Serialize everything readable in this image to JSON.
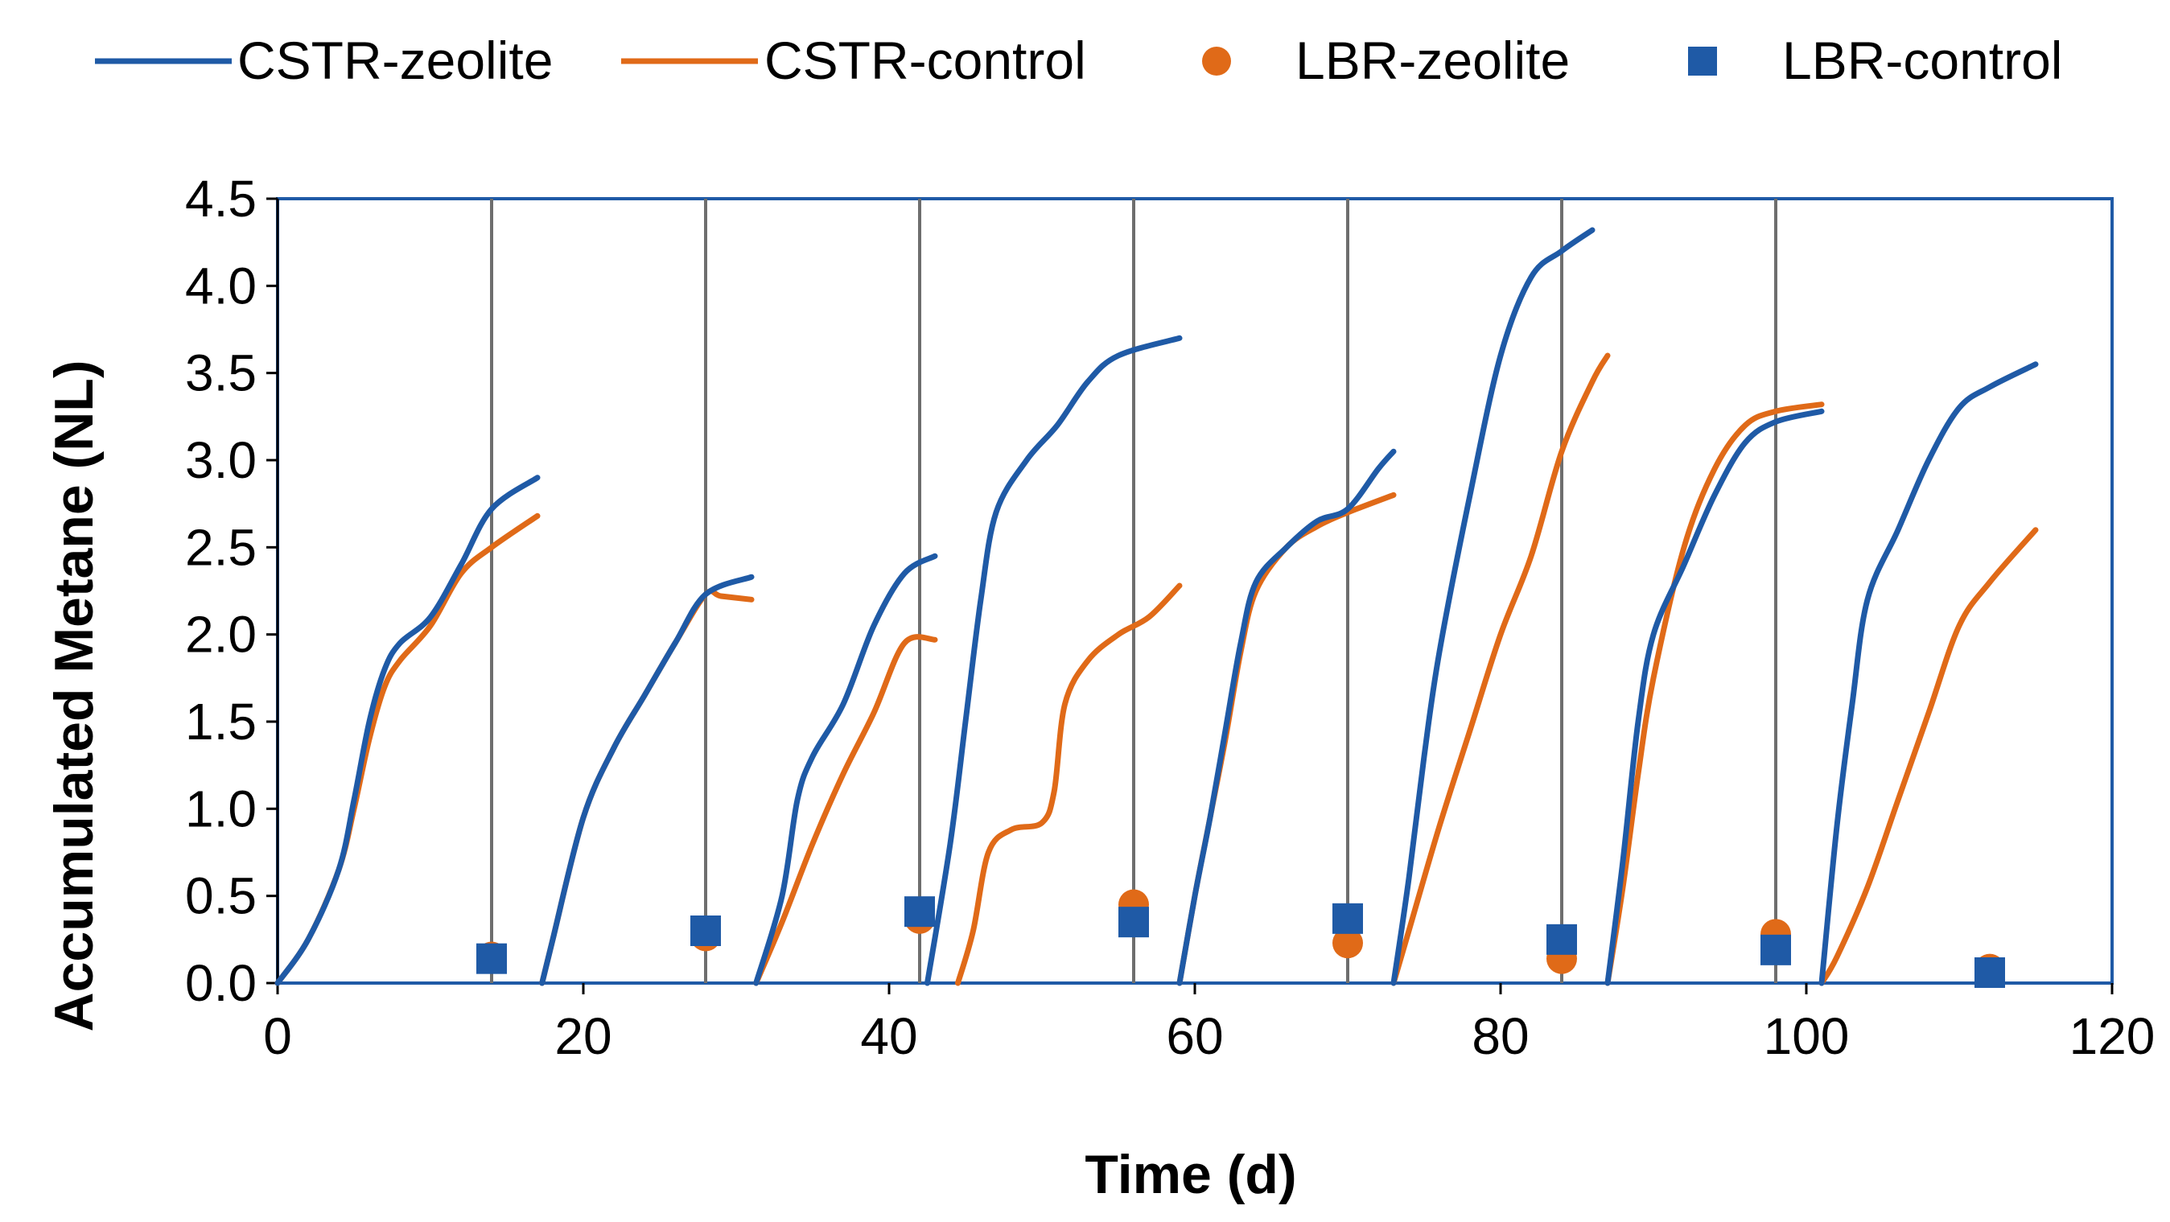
{
  "chart_data": {
    "type": "line",
    "title": "",
    "xlabel": "Time (d)",
    "ylabel": "Accumulated Metane (NL)",
    "xlim": [
      0,
      120
    ],
    "ylim": [
      0,
      4.5
    ],
    "x_ticks": [
      0,
      20,
      40,
      60,
      80,
      100,
      120
    ],
    "x_tick_labels": [
      "0",
      "20",
      "40",
      "60",
      "80",
      "100",
      "120"
    ],
    "y_ticks": [
      0,
      0.5,
      1.0,
      1.5,
      2.0,
      2.5,
      3.0,
      3.5,
      4.0,
      4.5
    ],
    "y_tick_labels": [
      "0.0",
      "0.5",
      "1.0",
      "1.5",
      "2.0",
      "2.5",
      "3.0",
      "3.5",
      "4.0",
      "4.5"
    ],
    "batch_markers_x": [
      14,
      28,
      42,
      56,
      70,
      84,
      98
    ],
    "legend_position": "top",
    "series": [
      {
        "name": "CSTR-zeolite",
        "kind": "line",
        "color": "#1f5aa6",
        "segments": [
          [
            [
              0,
              0
            ],
            [
              2,
              0.25
            ],
            [
              4,
              0.65
            ],
            [
              5,
              1.05
            ],
            [
              6,
              1.5
            ],
            [
              7,
              1.8
            ],
            [
              8,
              1.95
            ],
            [
              10,
              2.1
            ],
            [
              12,
              2.4
            ],
            [
              14,
              2.72
            ],
            [
              17,
              2.9
            ]
          ],
          [
            [
              17.3,
              0
            ],
            [
              18,
              0.25
            ],
            [
              20,
              0.95
            ],
            [
              22,
              1.35
            ],
            [
              24,
              1.65
            ],
            [
              26,
              1.95
            ],
            [
              28,
              2.23
            ],
            [
              31,
              2.33
            ]
          ],
          [
            [
              31.3,
              0
            ],
            [
              33,
              0.5
            ],
            [
              34,
              1.05
            ],
            [
              35,
              1.3
            ],
            [
              37,
              1.6
            ],
            [
              39,
              2.05
            ],
            [
              41,
              2.35
            ],
            [
              43,
              2.45
            ]
          ],
          [
            [
              42.5,
              0
            ],
            [
              44,
              0.8
            ],
            [
              45,
              1.5
            ],
            [
              46,
              2.2
            ],
            [
              47,
              2.7
            ],
            [
              49,
              3.0
            ],
            [
              51,
              3.2
            ],
            [
              53,
              3.45
            ],
            [
              55,
              3.6
            ],
            [
              59,
              3.7
            ]
          ],
          [
            [
              59,
              0
            ],
            [
              60,
              0.5
            ],
            [
              61,
              0.95
            ],
            [
              62,
              1.45
            ],
            [
              63,
              1.95
            ],
            [
              64,
              2.3
            ],
            [
              66,
              2.5
            ],
            [
              68,
              2.65
            ],
            [
              70,
              2.72
            ],
            [
              72,
              2.95
            ],
            [
              73,
              3.05
            ]
          ],
          [
            [
              73,
              0
            ],
            [
              74,
              0.6
            ],
            [
              75,
              1.3
            ],
            [
              76,
              1.9
            ],
            [
              78,
              2.8
            ],
            [
              80,
              3.6
            ],
            [
              82,
              4.05
            ],
            [
              84,
              4.2
            ],
            [
              86,
              4.32
            ]
          ],
          [
            [
              87,
              0
            ],
            [
              88,
              0.7
            ],
            [
              89,
              1.5
            ],
            [
              90,
              2.0
            ],
            [
              92,
              2.4
            ],
            [
              94,
              2.8
            ],
            [
              96,
              3.1
            ],
            [
              98,
              3.22
            ],
            [
              101,
              3.28
            ]
          ],
          [
            [
              101,
              0
            ],
            [
              102,
              0.9
            ],
            [
              103,
              1.6
            ],
            [
              104,
              2.2
            ],
            [
              106,
              2.6
            ],
            [
              108,
              3.0
            ],
            [
              110,
              3.3
            ],
            [
              112,
              3.42
            ],
            [
              115,
              3.55
            ]
          ]
        ]
      },
      {
        "name": "CSTR-control",
        "kind": "line",
        "color": "#e06a18",
        "segments": [
          [
            [
              0,
              0
            ],
            [
              2,
              0.25
            ],
            [
              4,
              0.65
            ],
            [
              5,
              1.0
            ],
            [
              6,
              1.4
            ],
            [
              7,
              1.7
            ],
            [
              8,
              1.85
            ],
            [
              10,
              2.05
            ],
            [
              12,
              2.35
            ],
            [
              14,
              2.5
            ],
            [
              17,
              2.68
            ]
          ],
          [
            [
              17.3,
              0
            ],
            [
              18,
              0.25
            ],
            [
              20,
              0.95
            ],
            [
              22,
              1.35
            ],
            [
              24,
              1.65
            ],
            [
              26,
              1.95
            ],
            [
              28,
              2.23
            ],
            [
              29,
              2.22
            ],
            [
              31,
              2.2
            ]
          ],
          [
            [
              31.3,
              0
            ],
            [
              33,
              0.35
            ],
            [
              35,
              0.8
            ],
            [
              37,
              1.2
            ],
            [
              39,
              1.55
            ],
            [
              41,
              1.95
            ],
            [
              43,
              1.97
            ]
          ],
          [
            [
              44.5,
              0
            ],
            [
              45.5,
              0.3
            ],
            [
              46.5,
              0.75
            ],
            [
              48,
              0.88
            ],
            [
              50,
              0.92
            ],
            [
              50.8,
              1.1
            ],
            [
              51.5,
              1.6
            ],
            [
              53,
              1.85
            ],
            [
              55,
              2.0
            ],
            [
              57,
              2.1
            ],
            [
              59,
              2.28
            ]
          ],
          [
            [
              59,
              0
            ],
            [
              60,
              0.5
            ],
            [
              61,
              0.95
            ],
            [
              62,
              1.4
            ],
            [
              63,
              1.9
            ],
            [
              64,
              2.25
            ],
            [
              66,
              2.5
            ],
            [
              68,
              2.62
            ],
            [
              70,
              2.7
            ],
            [
              73,
              2.8
            ]
          ],
          [
            [
              73,
              0
            ],
            [
              74,
              0.3
            ],
            [
              76,
              0.9
            ],
            [
              78,
              1.45
            ],
            [
              80,
              2.0
            ],
            [
              82,
              2.45
            ],
            [
              84,
              3.05
            ],
            [
              86,
              3.45
            ],
            [
              87,
              3.6
            ]
          ],
          [
            [
              87,
              0
            ],
            [
              88,
              0.55
            ],
            [
              89,
              1.2
            ],
            [
              90,
              1.75
            ],
            [
              92,
              2.5
            ],
            [
              94,
              2.95
            ],
            [
              96,
              3.2
            ],
            [
              98,
              3.28
            ],
            [
              101,
              3.32
            ]
          ],
          [
            [
              101,
              0
            ],
            [
              102,
              0.15
            ],
            [
              104,
              0.55
            ],
            [
              106,
              1.05
            ],
            [
              108,
              1.55
            ],
            [
              110,
              2.05
            ],
            [
              112,
              2.3
            ],
            [
              115,
              2.6
            ]
          ]
        ]
      },
      {
        "name": "LBR-zeolite",
        "kind": "scatter",
        "marker": "circle",
        "color": "#e06a18",
        "points": [
          [
            14,
            0.15
          ],
          [
            28,
            0.27
          ],
          [
            42,
            0.37
          ],
          [
            56,
            0.45
          ],
          [
            70,
            0.23
          ],
          [
            84,
            0.14
          ],
          [
            98,
            0.28
          ],
          [
            112,
            0.08
          ]
        ]
      },
      {
        "name": "LBR-control",
        "kind": "scatter",
        "marker": "square",
        "color": "#1f5aa6",
        "points": [
          [
            14,
            0.14
          ],
          [
            28,
            0.3
          ],
          [
            42,
            0.41
          ],
          [
            56,
            0.35
          ],
          [
            70,
            0.37
          ],
          [
            84,
            0.25
          ],
          [
            98,
            0.19
          ],
          [
            112,
            0.06
          ]
        ]
      }
    ]
  }
}
